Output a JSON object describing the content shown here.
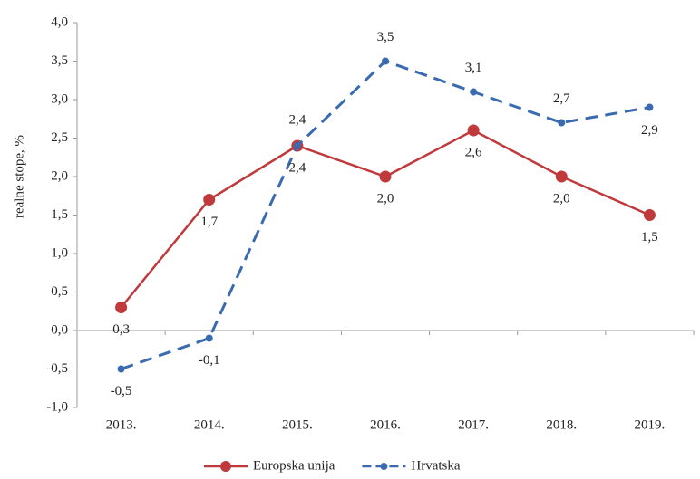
{
  "chart_data": {
    "type": "line",
    "ylabel": "realne stope, %",
    "categories": [
      "2013.",
      "2014.",
      "2015.",
      "2016.",
      "2017.",
      "2018.",
      "2019."
    ],
    "series": [
      {
        "name": "Europska unija",
        "color": "#c0393b",
        "marker": "circle",
        "values": [
          0.3,
          1.7,
          2.4,
          2.0,
          2.6,
          2.0,
          1.5
        ],
        "value_labels": [
          "0,3",
          "1,7",
          "2,4",
          "2,0",
          "2,6",
          "2,0",
          "1,5"
        ]
      },
      {
        "name": "Hrvatska",
        "color": "#3a6ab0",
        "marker": "dot",
        "dash": true,
        "values": [
          -0.5,
          -0.1,
          2.4,
          3.5,
          3.1,
          2.7,
          2.9
        ],
        "value_labels": [
          "-0,5",
          "-0,1",
          "2,4",
          "3,5",
          "3,1",
          "2,7",
          "2,9"
        ]
      }
    ],
    "ylim": [
      -1.0,
      4.0
    ],
    "yticks": [
      {
        "value": -1.0,
        "label": "-1,0"
      },
      {
        "value": -0.5,
        "label": "-0,5"
      },
      {
        "value": 0.0,
        "label": "0,0"
      },
      {
        "value": 0.5,
        "label": "0,5"
      },
      {
        "value": 1.0,
        "label": "1,0"
      },
      {
        "value": 1.5,
        "label": "1,5"
      },
      {
        "value": 2.0,
        "label": "2,0"
      },
      {
        "value": 2.5,
        "label": "2,5"
      },
      {
        "value": 3.0,
        "label": "3,0"
      },
      {
        "value": 3.5,
        "label": "3,5"
      },
      {
        "value": 4.0,
        "label": "4,0"
      }
    ],
    "legend": "bottom"
  }
}
